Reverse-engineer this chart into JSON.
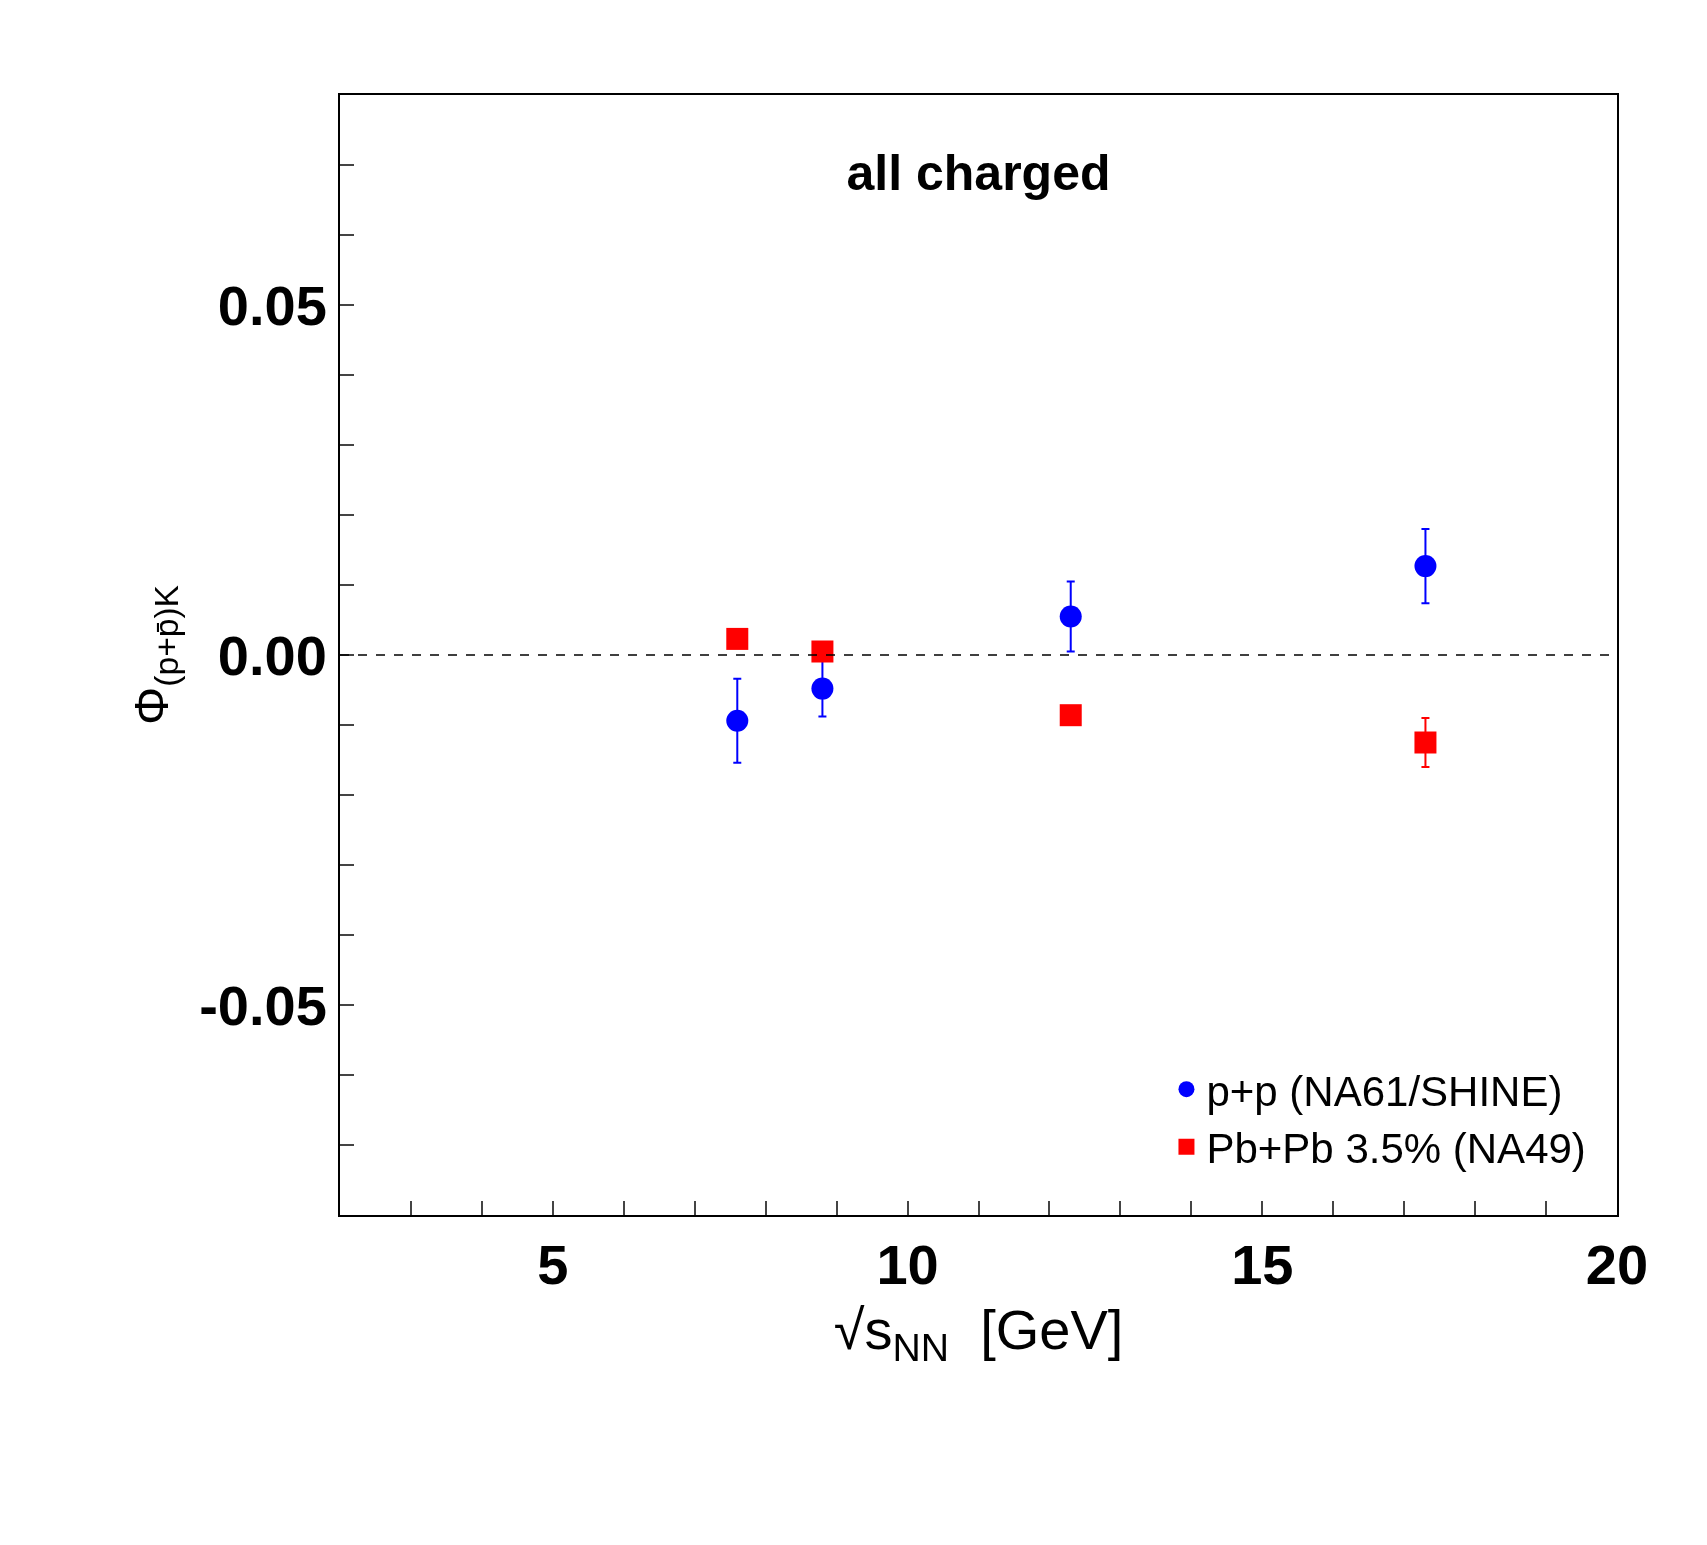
{
  "chart_data": {
    "type": "scatter",
    "title": "all charged",
    "xlabel": "√s$_{NN}$  [GeV]",
    "ylabel": "Φ$_{(p+p̄)K}$",
    "xlim": [
      2,
      20
    ],
    "ylim": [
      -0.08,
      0.08
    ],
    "xticks": [
      {
        "value": 3,
        "label": null
      },
      {
        "value": 4,
        "label": null
      },
      5,
      {
        "value": 6,
        "label": null
      },
      {
        "value": 7,
        "label": null
      },
      {
        "value": 8,
        "label": null
      },
      {
        "value": 9,
        "label": null
      },
      10,
      {
        "value": 11,
        "label": null
      },
      {
        "value": 12,
        "label": null
      },
      {
        "value": 13,
        "label": null
      },
      {
        "value": 14,
        "label": null
      },
      15,
      {
        "value": 16,
        "label": null
      },
      {
        "value": 17,
        "label": null
      },
      {
        "value": 18,
        "label": null
      },
      {
        "value": 19,
        "label": null
      },
      20
    ],
    "yticks": [
      {
        "value": -0.07,
        "label": null
      },
      {
        "value": -0.06,
        "label": null
      },
      -0.05,
      {
        "value": -0.04,
        "label": null
      },
      {
        "value": -0.03,
        "label": null
      },
      {
        "value": -0.02,
        "label": null
      },
      {
        "value": -0.01,
        "label": null
      },
      {
        "value": 0,
        "label": "0.00"
      },
      {
        "value": 0.01,
        "label": null
      },
      {
        "value": 0.02,
        "label": null
      },
      {
        "value": 0.03,
        "label": null
      },
      {
        "value": 0.04,
        "label": null
      },
      0.05,
      {
        "value": 0.06,
        "label": null
      },
      {
        "value": 0.07,
        "label": null
      }
    ],
    "x": [
      7.6,
      8.8,
      12.3,
      17.3
    ],
    "series": [
      {
        "name": "p+p (NA61/SHINE)",
        "color": "#0000ff",
        "marker": "circle",
        "values": [
          -0.0094,
          -0.0048,
          0.0055,
          0.0127
        ],
        "errors": [
          0.006,
          0.004,
          0.005,
          0.0053
        ]
      },
      {
        "name": "Pb+Pb 3.5% (NA49)",
        "color": "#ff0000",
        "marker": "square",
        "values": [
          0.0023,
          0.0005,
          -0.0086,
          -0.0125
        ],
        "errors": [
          null,
          null,
          null,
          0.0035
        ]
      }
    ],
    "ref_lines": [
      {
        "axis": "y",
        "value": 0,
        "line_style": "dashed",
        "color": "#000000"
      }
    ],
    "legend": "bottom right"
  }
}
